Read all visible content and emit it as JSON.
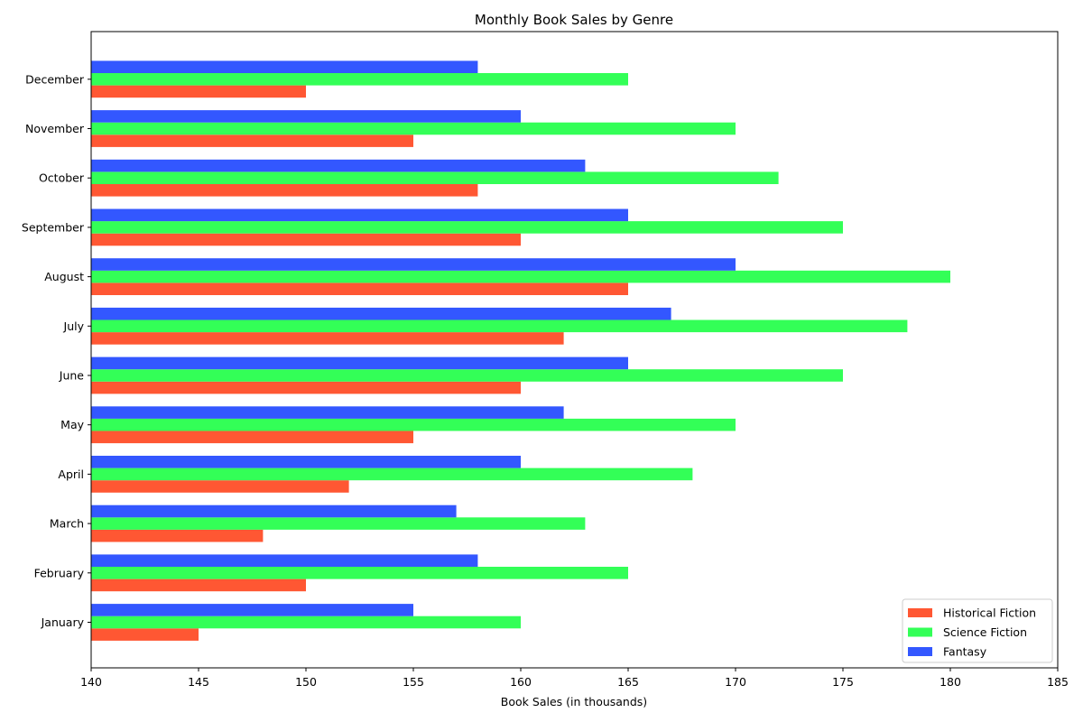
{
  "chart_data": {
    "type": "bar",
    "orientation": "horizontal",
    "title": "Monthly Book Sales by Genre",
    "xlabel": "Book Sales (in thousands)",
    "ylabel": "",
    "xlim": [
      140,
      185
    ],
    "xticks": [
      140,
      145,
      150,
      155,
      160,
      165,
      170,
      175,
      180,
      185
    ],
    "grid": false,
    "legend_position": "bottom-right",
    "categories": [
      "January",
      "February",
      "March",
      "April",
      "May",
      "June",
      "July",
      "August",
      "September",
      "October",
      "November",
      "December"
    ],
    "series": [
      {
        "name": "Historical Fiction",
        "color": "#ff5733",
        "values": [
          145,
          150,
          148,
          152,
          155,
          160,
          162,
          165,
          160,
          158,
          155,
          150
        ]
      },
      {
        "name": "Science Fiction",
        "color": "#33ff57",
        "values": [
          160,
          165,
          163,
          168,
          170,
          175,
          178,
          180,
          175,
          172,
          170,
          165
        ]
      },
      {
        "name": "Fantasy",
        "color": "#3357ff",
        "values": [
          155,
          158,
          157,
          160,
          162,
          165,
          167,
          170,
          165,
          163,
          160,
          158
        ]
      }
    ]
  }
}
